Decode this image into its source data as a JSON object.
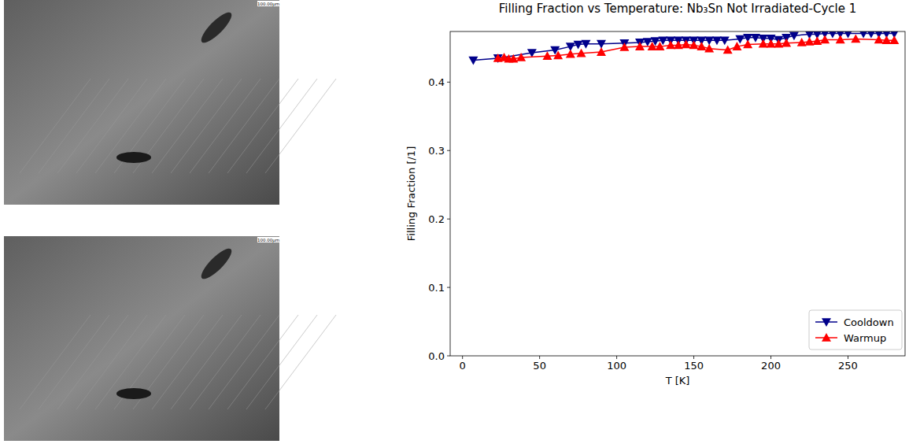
{
  "chart_data": {
    "type": "line",
    "title": "Filling Fraction vs Temperature: Nb₃Sn Not Irradiated-Cycle 1",
    "x_label": "T [K]",
    "y_label": "Filling Fraction [/1]",
    "xlim": [
      -8,
      287
    ],
    "ylim": [
      0,
      0.474
    ],
    "xticks": [
      0,
      50,
      100,
      150,
      200,
      250
    ],
    "yticks": [
      {
        "value": 0,
        "label": "0.0"
      },
      0.1,
      0.2,
      0.3,
      0.4
    ],
    "grid": false,
    "legend": "lower right",
    "series": [
      {
        "name": "Cooldown",
        "color": "#00008b",
        "marker": "triangle-down",
        "line_style": "solid",
        "x": [
          7,
          23,
          45,
          60,
          70,
          75,
          80,
          90,
          105,
          115,
          120,
          125,
          130,
          135,
          140,
          145,
          150,
          155,
          160,
          165,
          170,
          180,
          185,
          190,
          195,
          200,
          205,
          210,
          215,
          225,
          230,
          235,
          240,
          245,
          250,
          260,
          265,
          270,
          275,
          280
        ],
        "values": [
          0.432,
          0.435,
          0.443,
          0.447,
          0.452,
          0.455,
          0.456,
          0.456,
          0.457,
          0.458,
          0.459,
          0.46,
          0.461,
          0.461,
          0.461,
          0.461,
          0.461,
          0.461,
          0.461,
          0.461,
          0.461,
          0.463,
          0.465,
          0.465,
          0.464,
          0.464,
          0.462,
          0.465,
          0.468,
          0.47,
          0.47,
          0.471,
          0.471,
          0.471,
          0.471,
          0.471,
          0.471,
          0.471,
          0.471,
          0.471
        ]
      },
      {
        "name": "Warmup",
        "color": "#ff0000",
        "marker": "triangle-up",
        "line_style": "solid",
        "x": [
          23,
          27,
          30,
          33,
          38,
          55,
          62,
          70,
          77,
          90,
          105,
          115,
          123,
          128,
          135,
          140,
          145,
          150,
          155,
          160,
          172,
          178,
          185,
          195,
          200,
          205,
          210,
          220,
          225,
          230,
          235,
          245,
          255,
          270,
          275,
          280
        ],
        "values": [
          0.435,
          0.436,
          0.434,
          0.434,
          0.436,
          0.438,
          0.439,
          0.441,
          0.442,
          0.444,
          0.451,
          0.452,
          0.452,
          0.452,
          0.454,
          0.454,
          0.455,
          0.454,
          0.452,
          0.449,
          0.447,
          0.452,
          0.455,
          0.456,
          0.456,
          0.456,
          0.457,
          0.458,
          0.459,
          0.46,
          0.462,
          0.462,
          0.463,
          0.462,
          0.461,
          0.461
        ]
      }
    ]
  },
  "images": [
    {
      "scale_label": "100.00µm"
    },
    {
      "scale_label": "100.00µm"
    }
  ]
}
